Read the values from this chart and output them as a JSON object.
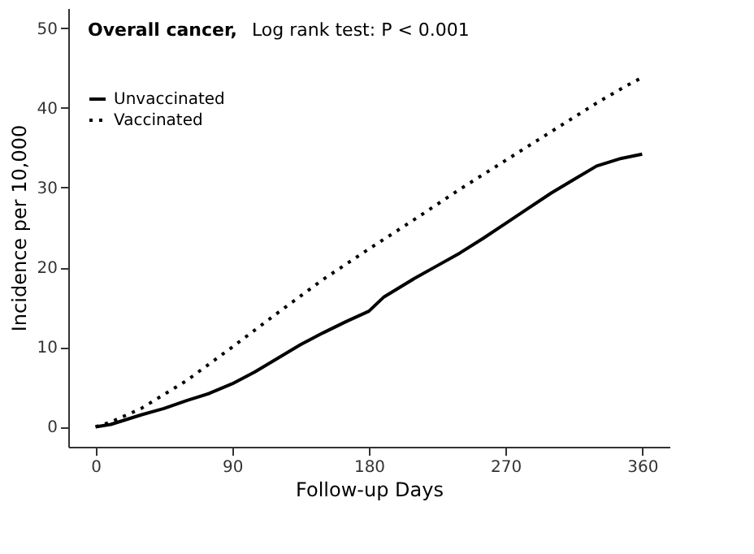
{
  "chart_data": {
    "type": "line",
    "title": "Overall cancer,",
    "subtitle": "Log rank test: P < 0.001",
    "xlabel": "Follow-up Days",
    "ylabel": "Incidence per 10,000",
    "xlim": [
      -18,
      378
    ],
    "xticks": [
      0,
      90,
      180,
      270,
      360
    ],
    "ylim": [
      -2.5,
      52.5
    ],
    "yticks": [
      0,
      10,
      20,
      30,
      40,
      50
    ],
    "grid": false,
    "legend": "top left",
    "marker": "none",
    "series": [
      {
        "name": "Unvaccinated",
        "color": "#000000",
        "line_style": "solid",
        "x": [
          0,
          10,
          30,
          45,
          60,
          75,
          90,
          105,
          120,
          135,
          150,
          165,
          180,
          190,
          210,
          225,
          240,
          255,
          270,
          285,
          300,
          315,
          330,
          345,
          360
        ],
        "values": [
          0,
          0.3,
          1.5,
          2.3,
          3.3,
          4.2,
          5.4,
          6.9,
          8.6,
          10.3,
          11.8,
          13.2,
          14.5,
          16.3,
          18.6,
          20.2,
          21.8,
          23.6,
          25.5,
          27.4,
          29.3,
          31.0,
          32.7,
          33.6,
          34.2
        ]
      },
      {
        "name": "Vaccinated",
        "color": "#000000",
        "line_style": "dotted",
        "x": [
          0,
          10,
          30,
          60,
          90,
          120,
          150,
          180,
          210,
          240,
          270,
          300,
          330,
          350,
          360
        ],
        "values": [
          0,
          0.6,
          2.3,
          5.8,
          10.0,
          14.3,
          18.5,
          22.3,
          26.0,
          29.8,
          33.4,
          37.0,
          40.6,
          42.8,
          43.8
        ]
      }
    ]
  }
}
